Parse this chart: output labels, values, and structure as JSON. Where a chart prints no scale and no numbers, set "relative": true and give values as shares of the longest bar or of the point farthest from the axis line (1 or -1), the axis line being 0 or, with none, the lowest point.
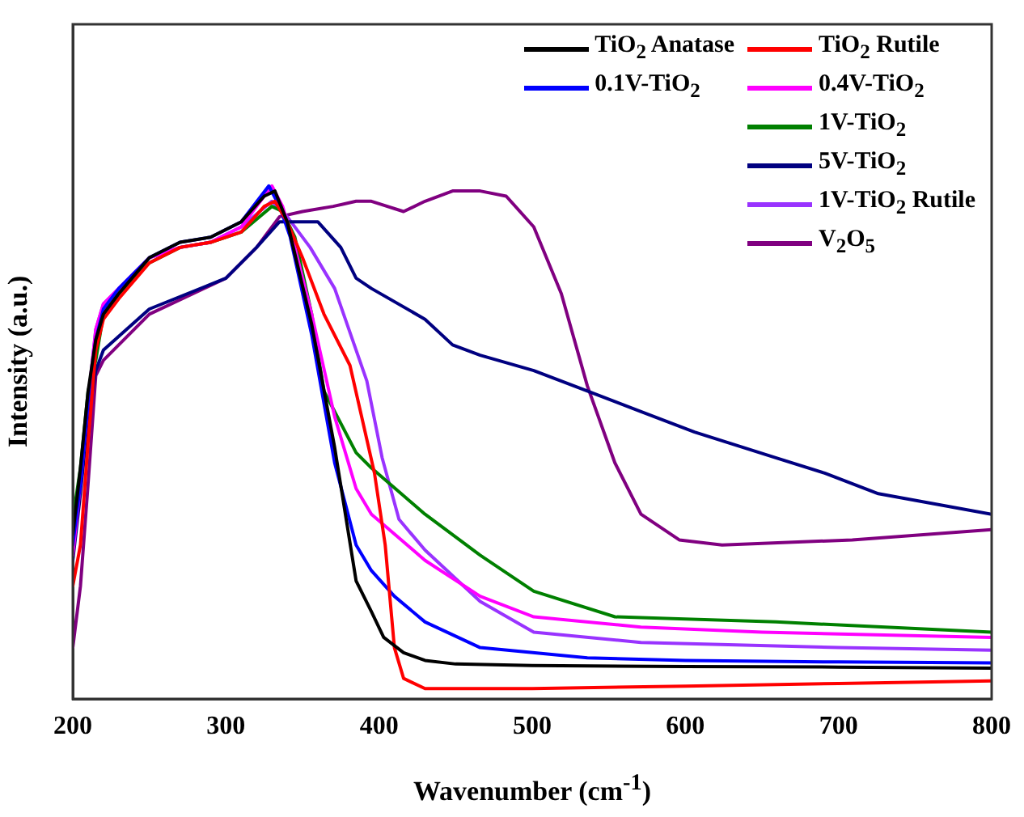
{
  "chart_data": {
    "type": "line",
    "xlabel": "Wavenumber (cm$^{-1}$)",
    "ylabel": "Intensity (a.u.)",
    "relative": true,
    "xlim": [
      200,
      800
    ],
    "xticks": [
      200,
      300,
      400,
      500,
      600,
      700,
      800
    ],
    "legend": "top right",
    "marker": "none",
    "series": [
      {
        "name": "TiO$_{2}$ Anatase",
        "color": "#000000",
        "x": [
          200,
          205,
          210,
          215,
          220,
          230,
          250,
          270,
          290,
          310,
          325,
          332,
          340,
          356,
          371,
          385,
          395,
          403,
          416,
          430,
          450,
          500,
          600,
          700,
          800
        ],
        "values": [
          0.32,
          0.45,
          0.6,
          0.7,
          0.75,
          0.79,
          0.86,
          0.89,
          0.9,
          0.93,
          0.98,
          0.99,
          0.93,
          0.73,
          0.49,
          0.23,
          0.17,
          0.12,
          0.09,
          0.075,
          0.068,
          0.065,
          0.063,
          0.062,
          0.06
        ]
      },
      {
        "name": "TiO$_{2}$ Rutile",
        "color": "#ff0000",
        "x": [
          200,
          205,
          210,
          215,
          220,
          230,
          250,
          270,
          290,
          310,
          325,
          332,
          340,
          350,
          364,
          381,
          397,
          404,
          410,
          416,
          430,
          500,
          600,
          700,
          800
        ],
        "values": [
          0.22,
          0.3,
          0.5,
          0.68,
          0.74,
          0.78,
          0.85,
          0.88,
          0.89,
          0.91,
          0.96,
          0.97,
          0.93,
          0.86,
          0.75,
          0.65,
          0.44,
          0.3,
          0.1,
          0.04,
          0.02,
          0.02,
          0.025,
          0.03,
          0.035
        ]
      },
      {
        "name": "0.1V-TiO$_{2}$",
        "color": "#0000ff",
        "x": [
          200,
          205,
          210,
          215,
          220,
          230,
          250,
          270,
          290,
          310,
          328,
          335,
          342,
          356,
          371,
          385,
          395,
          410,
          430,
          466,
          536,
          600,
          700,
          800
        ],
        "values": [
          0.3,
          0.42,
          0.58,
          0.7,
          0.76,
          0.8,
          0.86,
          0.89,
          0.9,
          0.93,
          1.0,
          0.96,
          0.9,
          0.71,
          0.46,
          0.3,
          0.25,
          0.2,
          0.15,
          0.1,
          0.08,
          0.075,
          0.072,
          0.07
        ]
      },
      {
        "name": "0.4V-TiO$_{2}$",
        "color": "#ff00ff",
        "x": [
          200,
          205,
          210,
          215,
          220,
          230,
          250,
          270,
          290,
          310,
          330,
          337,
          345,
          356,
          371,
          385,
          395,
          430,
          466,
          501,
          571,
          650,
          800
        ],
        "values": [
          0.28,
          0.42,
          0.58,
          0.72,
          0.77,
          0.8,
          0.86,
          0.88,
          0.89,
          0.92,
          1.0,
          0.96,
          0.88,
          0.75,
          0.55,
          0.41,
          0.36,
          0.27,
          0.2,
          0.16,
          0.14,
          0.13,
          0.12
        ]
      },
      {
        "name": "1V-TiO$_{2}$",
        "color": "#008000",
        "x": [
          200,
          205,
          210,
          215,
          220,
          230,
          250,
          270,
          290,
          310,
          330,
          337,
          345,
          356,
          364,
          385,
          395,
          430,
          466,
          501,
          554,
          659,
          800
        ],
        "values": [
          0.35,
          0.45,
          0.6,
          0.66,
          0.75,
          0.79,
          0.85,
          0.88,
          0.89,
          0.91,
          0.96,
          0.95,
          0.9,
          0.75,
          0.6,
          0.48,
          0.45,
          0.36,
          0.28,
          0.21,
          0.16,
          0.15,
          0.13
        ]
      },
      {
        "name": "5V-TiO$_{2}$",
        "color": "#000080",
        "x": [
          200,
          205,
          210,
          215,
          220,
          250,
          300,
          320,
          335,
          360,
          375,
          385,
          395,
          430,
          448,
          466,
          501,
          536,
          606,
          659,
          691,
          726,
          800
        ],
        "values": [
          0.27,
          0.4,
          0.55,
          0.64,
          0.68,
          0.76,
          0.82,
          0.88,
          0.93,
          0.93,
          0.88,
          0.82,
          0.8,
          0.74,
          0.69,
          0.67,
          0.64,
          0.6,
          0.52,
          0.47,
          0.44,
          0.4,
          0.36
        ]
      },
      {
        "name": "1V-TiO$_{2}$ Rutile",
        "color": "#9933ff",
        "x": [
          200,
          205,
          210,
          215,
          220,
          230,
          250,
          270,
          290,
          310,
          330,
          340,
          355,
          371,
          392,
          402,
          413,
          430,
          466,
          501,
          571,
          700,
          800
        ],
        "values": [
          0.3,
          0.42,
          0.58,
          0.72,
          0.77,
          0.8,
          0.86,
          0.88,
          0.89,
          0.92,
          0.97,
          0.94,
          0.88,
          0.8,
          0.62,
          0.47,
          0.35,
          0.29,
          0.19,
          0.13,
          0.11,
          0.1,
          0.095
        ]
      },
      {
        "name": "V$_{2}$O$_{5}$",
        "color": "#800080",
        "x": [
          200,
          205,
          210,
          215,
          220,
          250,
          300,
          320,
          335,
          350,
          370,
          385,
          395,
          416,
          430,
          448,
          466,
          483,
          501,
          519,
          536,
          554,
          571,
          596,
          624,
          709,
          800
        ],
        "values": [
          0.1,
          0.22,
          0.42,
          0.63,
          0.66,
          0.75,
          0.82,
          0.88,
          0.94,
          0.95,
          0.96,
          0.97,
          0.97,
          0.95,
          0.97,
          0.99,
          0.99,
          0.98,
          0.92,
          0.79,
          0.61,
          0.46,
          0.36,
          0.31,
          0.3,
          0.31,
          0.33
        ]
      }
    ]
  }
}
